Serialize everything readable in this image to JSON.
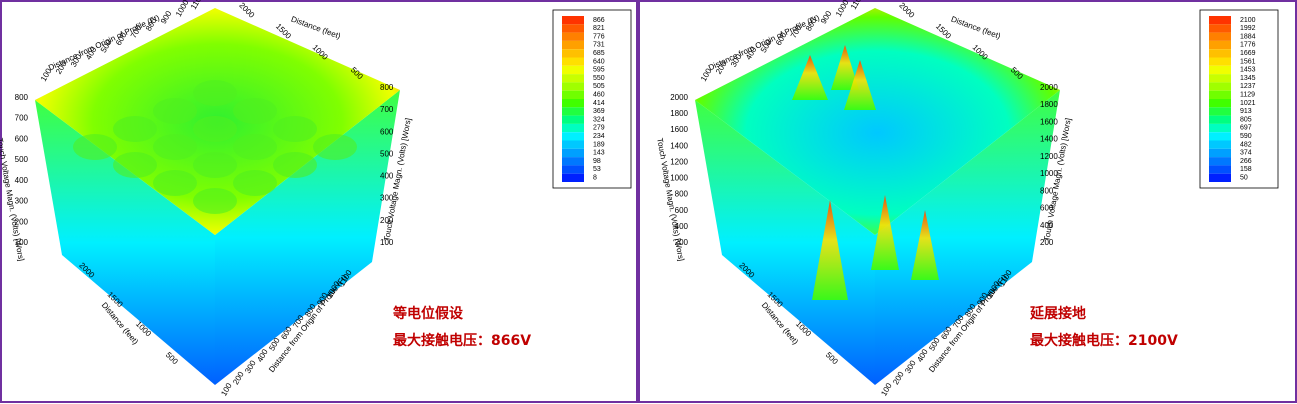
{
  "panels": [
    {
      "legend": {
        "levels": [
          866,
          821,
          776,
          731,
          685,
          640,
          595,
          550,
          505,
          460,
          414,
          369,
          324,
          279,
          234,
          189,
          143,
          98,
          53,
          8
        ],
        "colors": [
          "#ff3300",
          "#ff5a00",
          "#ff8000",
          "#ffa000",
          "#ffc000",
          "#ffe000",
          "#f0ff00",
          "#c8ff00",
          "#a0ff00",
          "#70ff00",
          "#40ff00",
          "#20ff40",
          "#00ff80",
          "#00ffc0",
          "#00f0ff",
          "#00c8ff",
          "#00a0ff",
          "#0078ff",
          "#0050ff",
          "#0020ff"
        ]
      },
      "axes": {
        "profile_title": "Distance from Origin of Profile (Ft)",
        "distance_title": "Distance (feet)",
        "voltage_title": "Touch Voltage Magn. (Volts) [Wors]",
        "profile_ticks": [
          100,
          200,
          300,
          400,
          500,
          600,
          700,
          800,
          900,
          1000,
          1100
        ],
        "distance_ticks": [
          2000,
          1500,
          1000,
          500
        ],
        "voltage_ticks": [
          100,
          200,
          300,
          400,
          500,
          600,
          700,
          800
        ]
      },
      "annotation": {
        "title": "等电位假设",
        "max_voltage": "最大接触电压：866V"
      }
    },
    {
      "legend": {
        "levels": [
          2100,
          1992,
          1884,
          1776,
          1669,
          1561,
          1453,
          1345,
          1237,
          1129,
          1021,
          913,
          805,
          697,
          590,
          482,
          374,
          266,
          158,
          50
        ],
        "colors": [
          "#ff3300",
          "#ff5a00",
          "#ff8000",
          "#ffa000",
          "#ffc000",
          "#ffe000",
          "#f0ff00",
          "#c8ff00",
          "#a0ff00",
          "#70ff00",
          "#40ff00",
          "#20ff40",
          "#00ff80",
          "#00ffc0",
          "#00f0ff",
          "#00c8ff",
          "#00a0ff",
          "#0078ff",
          "#0050ff",
          "#0020ff"
        ]
      },
      "axes": {
        "profile_title": "Distance from Origin of Profile (Ft)",
        "distance_title": "Distance (feet)",
        "voltage_title": "Touch Voltage Magn. (Volts) [Wors]",
        "profile_ticks": [
          100,
          200,
          300,
          400,
          500,
          600,
          700,
          800,
          900,
          1000,
          1100
        ],
        "distance_ticks": [
          2000,
          1500,
          1000,
          500
        ],
        "voltage_ticks": [
          200,
          400,
          600,
          800,
          1000,
          1200,
          1400,
          1600,
          1800,
          2000
        ]
      },
      "annotation": {
        "title": "延展接地",
        "max_voltage": "最大接触电压：2100V"
      }
    }
  ]
}
